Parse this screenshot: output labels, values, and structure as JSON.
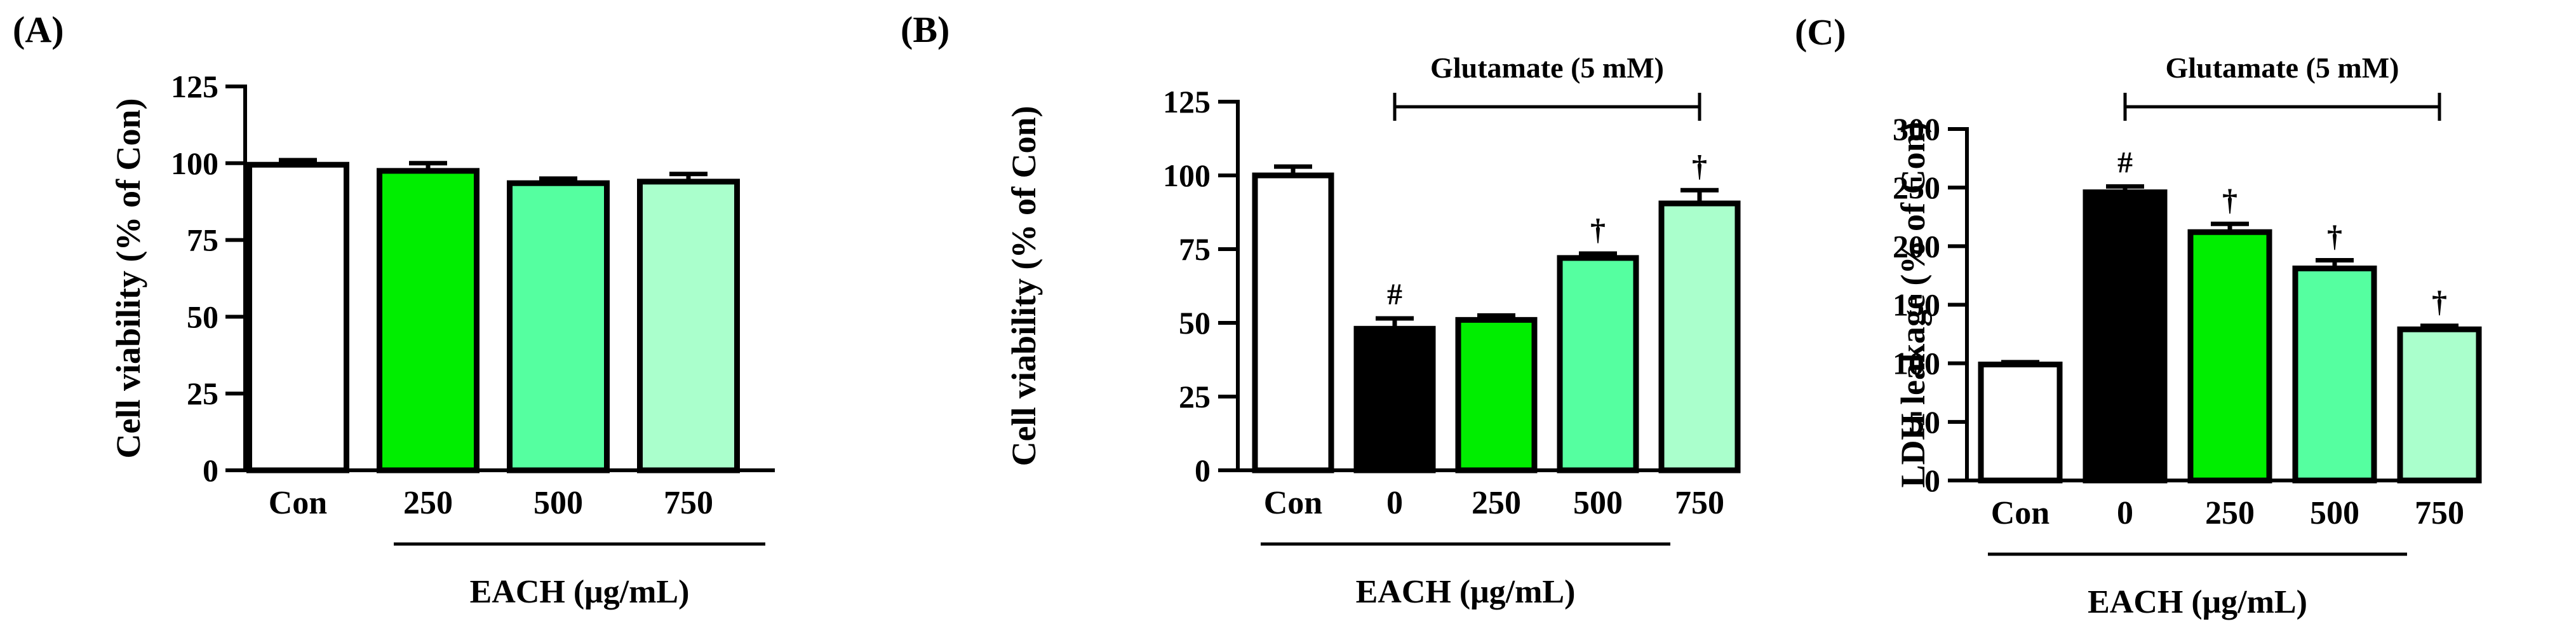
{
  "chart_data": [
    {
      "type": "bar",
      "panel_label": "(A)",
      "ylabel": "Cell viability (% of Con)",
      "ylim": [
        0,
        125
      ],
      "yticks": [
        0,
        25,
        50,
        75,
        100,
        125
      ],
      "categories": [
        "Con",
        "250",
        "500",
        "750"
      ],
      "values": [
        99.5,
        97.5,
        93.5,
        94
      ],
      "errors": [
        1.5,
        2.5,
        1.5,
        2.5
      ],
      "colors": [
        "#ffffff",
        "#00ee00",
        "#55ffa0",
        "#aaffcc"
      ],
      "annotations": [
        "",
        "",
        "",
        ""
      ],
      "group_label": "EACH (μg/mL)",
      "group_start": 1,
      "bracket_label": "",
      "bracket_start": null
    },
    {
      "type": "bar",
      "panel_label": "(B)",
      "ylabel": "Cell viability (% of Con)",
      "ylim": [
        0,
        125
      ],
      "yticks": [
        0,
        25,
        50,
        75,
        100,
        125
      ],
      "categories": [
        "Con",
        "0",
        "250",
        "500",
        "750"
      ],
      "values": [
        100,
        48,
        51,
        72,
        90.5
      ],
      "errors": [
        3,
        3.5,
        1.5,
        1.5,
        4.5
      ],
      "colors": [
        "#ffffff",
        "#000000",
        "#00ee00",
        "#55ffa0",
        "#aaffcc"
      ],
      "annotations": [
        "",
        "#",
        "",
        "†",
        "†"
      ],
      "group_label": "EACH (μg/mL)",
      "group_start": 1,
      "bracket_label": "Glutamate (5 mM)",
      "bracket_start": 1
    },
    {
      "type": "bar",
      "panel_label": "(C)",
      "ylabel": "LDH leakage (% of Con)",
      "ylim": [
        0,
        300
      ],
      "yticks": [
        0,
        50,
        100,
        150,
        200,
        250,
        300
      ],
      "categories": [
        "Con",
        "0",
        "250",
        "500",
        "750"
      ],
      "values": [
        99,
        246,
        212,
        181,
        129
      ],
      "errors": [
        2,
        5,
        7,
        7,
        3
      ],
      "colors": [
        "#ffffff",
        "#000000",
        "#00ee00",
        "#55ffa0",
        "#aaffcc"
      ],
      "annotations": [
        "",
        "#",
        "†",
        "†",
        "†"
      ],
      "group_label": "EACH (μg/mL)",
      "group_start": 1,
      "bracket_label": "Glutamate (5 mM)",
      "bracket_start": 1
    }
  ]
}
